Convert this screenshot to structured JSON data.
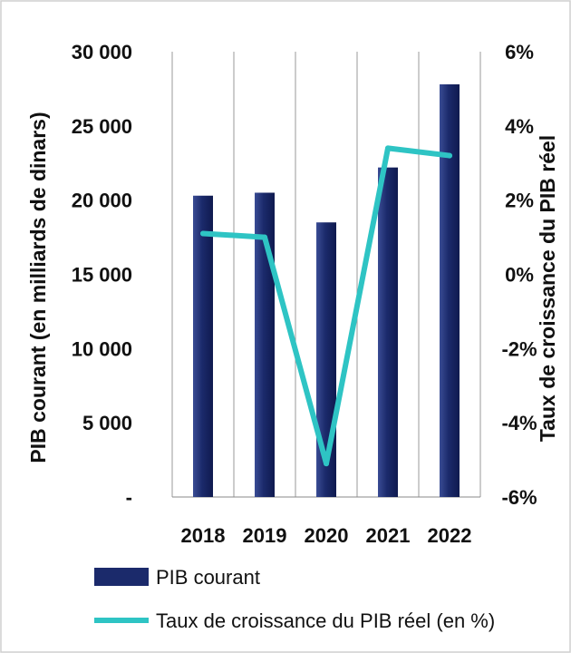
{
  "chart_data": {
    "type": "bar",
    "categories": [
      "2018",
      "2019",
      "2020",
      "2021",
      "2022"
    ],
    "series": [
      {
        "name": "PIB courant",
        "kind": "bar",
        "axis": "left",
        "color": "#1b2a6b",
        "values": [
          20300,
          20500,
          18500,
          22200,
          27800
        ]
      },
      {
        "name": "Taux de croissance du PIB réel (en %)",
        "kind": "line",
        "axis": "right",
        "color": "#2ec4c4",
        "values": [
          1.1,
          1.0,
          -5.1,
          3.4,
          3.2
        ]
      }
    ],
    "ylabel": "PIB courant (en milliards de dinars)",
    "ylim": [
      0,
      30000
    ],
    "yticks": [
      "-",
      "5 000",
      "10 000",
      "15 000",
      "20 000",
      "25 000",
      "30 000"
    ],
    "y2label": "Taux de croissance du PIB réel",
    "y2lim": [
      -6,
      6
    ],
    "y2ticks": [
      "-6%",
      "-4%",
      "-2%",
      "0%",
      "2%",
      "4%",
      "6%"
    ],
    "grid": "vertical",
    "legend_position": "bottom"
  }
}
